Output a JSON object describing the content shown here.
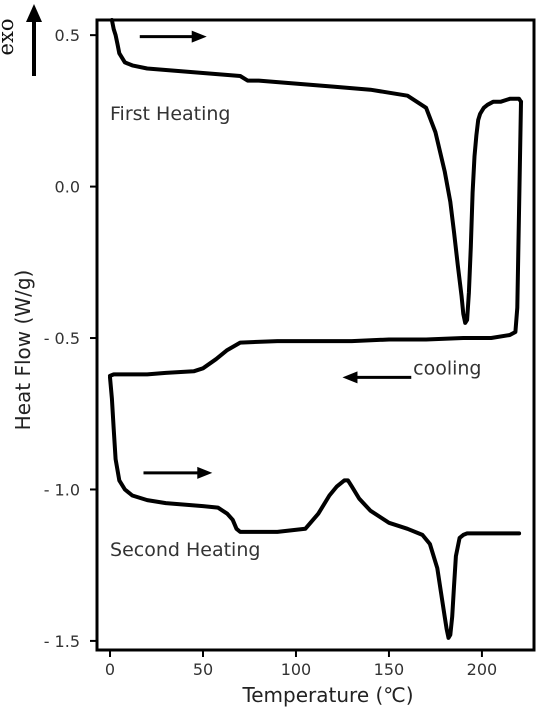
{
  "chart_data": {
    "type": "line",
    "ylabel": "Heat Flow (W/g)",
    "xlabel": "Temperature (℃)",
    "exo_label": "exo",
    "xlim": [
      -7,
      228
    ],
    "ylim": [
      -1.53,
      0.55
    ],
    "x_ticks": [
      {
        "value": 0,
        "label": "0"
      },
      {
        "value": 50,
        "label": "50"
      },
      {
        "value": 100,
        "label": "100"
      },
      {
        "value": 150,
        "label": "150"
      },
      {
        "value": 200,
        "label": "200"
      }
    ],
    "y_ticks": [
      {
        "value": 0.5,
        "label": "0.5"
      },
      {
        "value": 0.0,
        "label": "0.0"
      },
      {
        "value": -0.5,
        "label": "- 0.5"
      },
      {
        "value": -1.0,
        "label": "- 1.0"
      },
      {
        "value": -1.5,
        "label": "- 1.5"
      }
    ],
    "annotations": [
      {
        "text": "First Heating",
        "x": 0,
        "y": 0.22
      },
      {
        "text": "cooling",
        "x": 163,
        "y": -0.62
      },
      {
        "text": "Second Heating",
        "x": 0,
        "y": -1.22
      }
    ],
    "arrows": [
      {
        "direction": "right",
        "x1": 16,
        "x2": 52,
        "y": 0.495
      },
      {
        "direction": "left",
        "x1": 162,
        "x2": 125,
        "y": -0.63
      },
      {
        "direction": "right",
        "x1": 18,
        "x2": 55,
        "y": -0.945
      }
    ],
    "series": [
      {
        "x": [
          1,
          2,
          3,
          4,
          5,
          8,
          12,
          20,
          30,
          40,
          50,
          60,
          70,
          74,
          76,
          80,
          100,
          120,
          140,
          150,
          160,
          170,
          175,
          180,
          183,
          185,
          187,
          189,
          190,
          191,
          192,
          193,
          194,
          195,
          196,
          197,
          198,
          199,
          200,
          201,
          203,
          206,
          210,
          215,
          218,
          220,
          221
        ],
        "y": [
          0.55,
          0.52,
          0.5,
          0.47,
          0.44,
          0.41,
          0.4,
          0.39,
          0.385,
          0.38,
          0.375,
          0.37,
          0.365,
          0.35,
          0.35,
          0.35,
          0.34,
          0.33,
          0.32,
          0.31,
          0.3,
          0.26,
          0.18,
          0.05,
          -0.05,
          -0.15,
          -0.26,
          -0.36,
          -0.42,
          -0.45,
          -0.44,
          -0.35,
          -0.2,
          -0.02,
          0.1,
          0.17,
          0.22,
          0.24,
          0.25,
          0.26,
          0.27,
          0.28,
          0.28,
          0.29,
          0.29,
          0.29,
          0.28
        ]
      },
      {
        "x": [
          221,
          219,
          218,
          215,
          205,
          190,
          170,
          150,
          130,
          110,
          90,
          70,
          63,
          57,
          50,
          45,
          30,
          20,
          10,
          5,
          2,
          0
        ],
        "y": [
          0.28,
          -0.4,
          -0.48,
          -0.49,
          -0.5,
          -0.5,
          -0.505,
          -0.505,
          -0.51,
          -0.51,
          -0.51,
          -0.515,
          -0.54,
          -0.57,
          -0.6,
          -0.61,
          -0.615,
          -0.62,
          -0.62,
          -0.62,
          -0.62,
          -0.625
        ]
      },
      {
        "x": [
          0,
          1,
          2,
          3,
          5,
          8,
          12,
          20,
          30,
          40,
          50,
          58,
          63,
          66,
          68,
          70,
          75,
          90,
          105,
          112,
          118,
          122,
          126,
          128,
          130,
          134,
          140,
          150,
          160,
          168,
          172,
          176,
          178,
          180,
          181,
          182,
          183,
          184,
          185,
          186,
          188,
          190,
          192,
          195,
          200,
          210,
          220
        ],
        "y": [
          -0.63,
          -0.7,
          -0.8,
          -0.9,
          -0.97,
          -1.0,
          -1.02,
          -1.035,
          -1.045,
          -1.05,
          -1.055,
          -1.06,
          -1.08,
          -1.1,
          -1.13,
          -1.14,
          -1.14,
          -1.14,
          -1.13,
          -1.08,
          -1.02,
          -0.99,
          -0.97,
          -0.97,
          -0.99,
          -1.03,
          -1.07,
          -1.11,
          -1.13,
          -1.15,
          -1.18,
          -1.26,
          -1.34,
          -1.42,
          -1.46,
          -1.49,
          -1.48,
          -1.42,
          -1.32,
          -1.22,
          -1.16,
          -1.15,
          -1.145,
          -1.145,
          -1.145,
          -1.145,
          -1.145
        ]
      }
    ]
  }
}
